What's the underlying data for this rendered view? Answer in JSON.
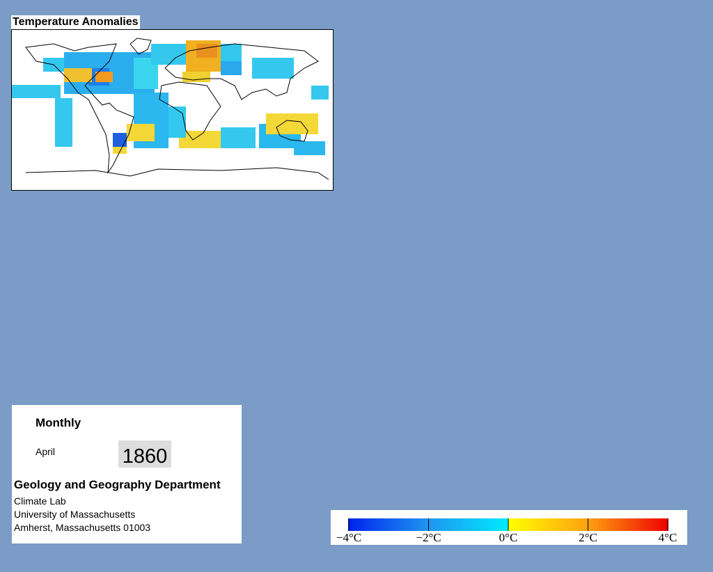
{
  "header": {
    "title": "Temperature Anomalies"
  },
  "info": {
    "period": "Monthly",
    "month": "April",
    "year": "1860",
    "department": "Geology and Geography Department",
    "address": [
      "Climate Lab",
      "University of Massachusetts",
      "Amherst, Massachusetts 01003"
    ]
  },
  "colorbar": {
    "range": [
      -4,
      4
    ],
    "ticks": [
      {
        "value": -4,
        "label": "−4°C"
      },
      {
        "value": -2,
        "label": "−2°C"
      },
      {
        "value": 0,
        "label": "0°C"
      },
      {
        "value": 2,
        "label": "2°C"
      },
      {
        "value": 4,
        "label": "4°C"
      }
    ]
  }
}
